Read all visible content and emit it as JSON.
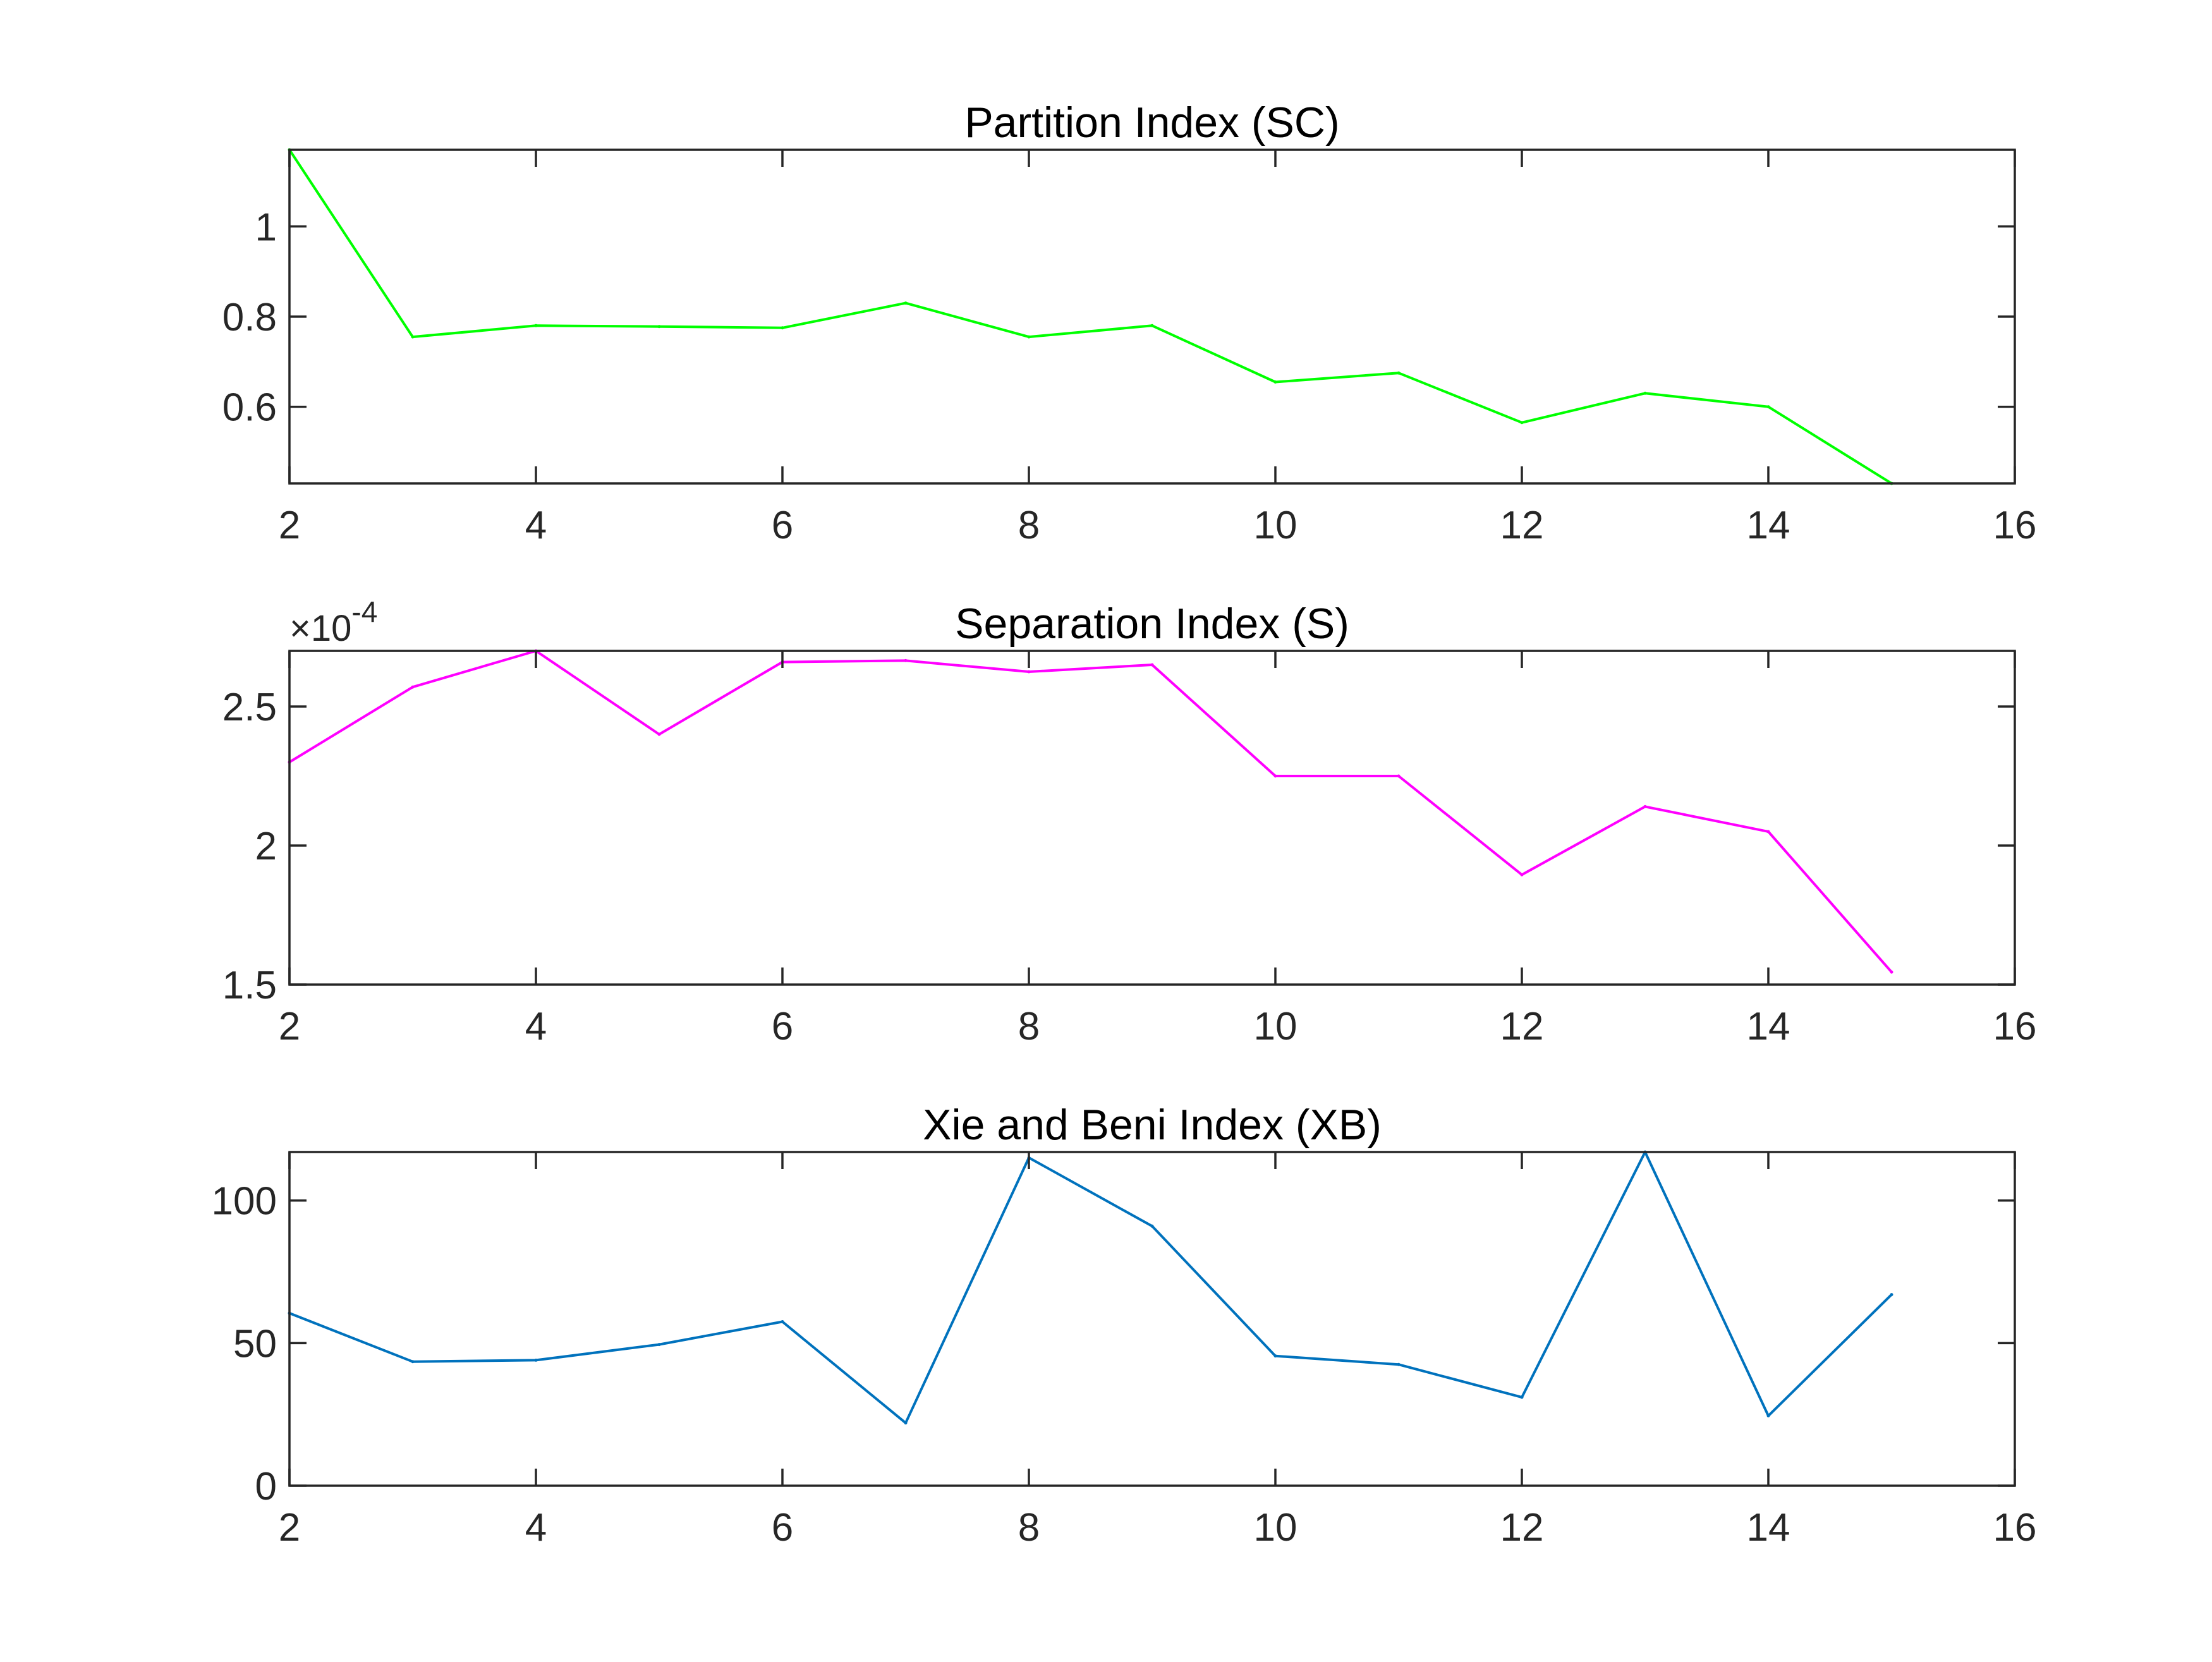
{
  "chart_data": [
    {
      "type": "line",
      "title": "Partition Index (SC)",
      "xlabel": "",
      "ylabel": "",
      "xlim": [
        2,
        16
      ],
      "ylim": [
        0.43,
        1.17
      ],
      "xticks": [
        2,
        4,
        6,
        8,
        10,
        12,
        14,
        16
      ],
      "yticks": [
        0.6,
        0.8,
        1
      ],
      "ytick_labels": [
        "0.6",
        "0.8",
        "1"
      ],
      "exponent_label": "",
      "grid": false,
      "series": [
        {
          "color": "#00ff00",
          "x": [
            2,
            3,
            4,
            5,
            6,
            7,
            8,
            9,
            10,
            11,
            12,
            13,
            14,
            15
          ],
          "y": [
            1.17,
            0.755,
            0.78,
            0.778,
            0.775,
            0.83,
            0.755,
            0.78,
            0.655,
            0.675,
            0.565,
            0.63,
            0.6,
            0.43
          ]
        }
      ]
    },
    {
      "type": "line",
      "title": "Separation Index (S)",
      "xlabel": "",
      "ylabel": "",
      "xlim": [
        2,
        16
      ],
      "ylim": [
        1.5,
        2.7
      ],
      "xticks": [
        2,
        4,
        6,
        8,
        10,
        12,
        14,
        16
      ],
      "yticks": [
        1.5,
        2,
        2.5
      ],
      "ytick_labels": [
        "1.5",
        "2",
        "2.5"
      ],
      "exponent_label": {
        "base": "×10",
        "exponent": "-4"
      },
      "grid": false,
      "series": [
        {
          "color": "#ff00ff",
          "x": [
            2,
            3,
            4,
            5,
            6,
            7,
            8,
            9,
            10,
            11,
            12,
            13,
            14,
            15
          ],
          "y": [
            2.3,
            2.57,
            2.7,
            2.4,
            2.66,
            2.665,
            2.625,
            2.65,
            2.25,
            2.25,
            1.895,
            2.14,
            2.05,
            1.545
          ]
        }
      ]
    },
    {
      "type": "line",
      "title": "Xie and Beni Index (XB)",
      "xlabel": "",
      "ylabel": "",
      "xlim": [
        2,
        16
      ],
      "ylim": [
        0,
        117
      ],
      "xticks": [
        2,
        4,
        6,
        8,
        10,
        12,
        14,
        16
      ],
      "yticks": [
        0,
        50,
        100
      ],
      "ytick_labels": [
        "0",
        "50",
        "100"
      ],
      "exponent_label": "",
      "grid": false,
      "series": [
        {
          "color": "#0072bd",
          "x": [
            2,
            3,
            4,
            5,
            6,
            7,
            8,
            9,
            10,
            11,
            12,
            13,
            14,
            15
          ],
          "y": [
            60.5,
            43.5,
            44,
            49.5,
            57.5,
            22,
            115,
            91,
            45.5,
            42.5,
            31,
            117,
            24.5,
            67
          ]
        }
      ]
    }
  ]
}
